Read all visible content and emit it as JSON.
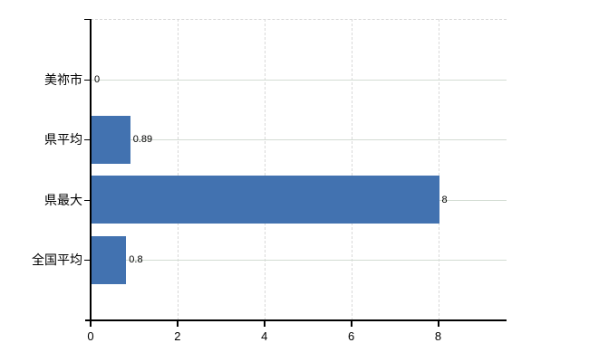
{
  "chart_data": {
    "type": "bar",
    "orientation": "horizontal",
    "categories": [
      "美祢市",
      "県平均",
      "県最大",
      "全国平均"
    ],
    "values": [
      0,
      0.89,
      8,
      0.8
    ],
    "value_labels": [
      "0",
      "0.89",
      "8",
      "0.8"
    ],
    "x_tick_labels": [
      "0",
      "2",
      "4",
      "6",
      "8"
    ],
    "x_tick_values": [
      0,
      2,
      4,
      6,
      8
    ],
    "xlim": [
      0,
      9.57
    ],
    "title": "",
    "xlabel": "",
    "ylabel": "",
    "legend": "none",
    "grid": {
      "horizontal_style": "solid",
      "vertical_style": "dashed",
      "top_border_style": "dashed"
    },
    "colors": {
      "bar": "#4272b0",
      "horizontal_grid": "#d3dcd3",
      "vertical_grid": "#d9d9d9",
      "axis": "#000000",
      "text": "#000000",
      "background": "#ffffff"
    }
  }
}
